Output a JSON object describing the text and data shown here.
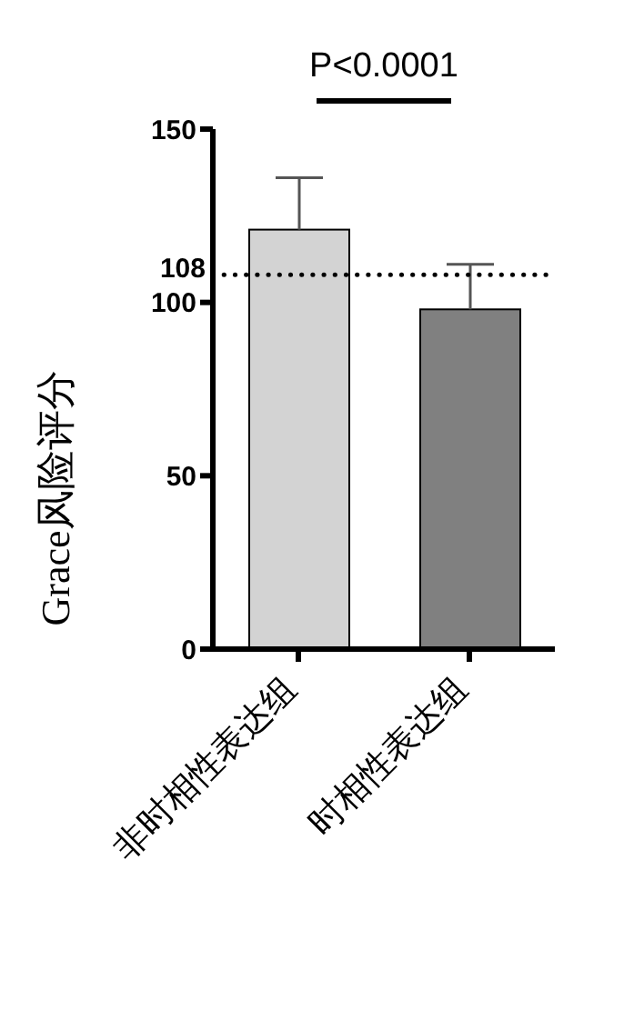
{
  "chart_data": {
    "type": "bar",
    "ylabel": "Grace风险评分",
    "categories": [
      "非时相性表达组",
      "时相性表达组"
    ],
    "values": [
      121,
      98
    ],
    "colors": [
      "#d3d3d3",
      "#808080"
    ],
    "errors": [
      [
        121,
        136
      ],
      [
        98,
        111
      ]
    ],
    "ylim": [
      0,
      150
    ],
    "yticks": [
      0,
      50,
      100,
      150
    ],
    "grid": false,
    "legend": false,
    "ref_lines": [
      {
        "axis": "y",
        "value": 108,
        "label": "108",
        "line_style": "dotted",
        "color": "#000000"
      }
    ],
    "annotations": [
      "P<0.0001"
    ]
  }
}
